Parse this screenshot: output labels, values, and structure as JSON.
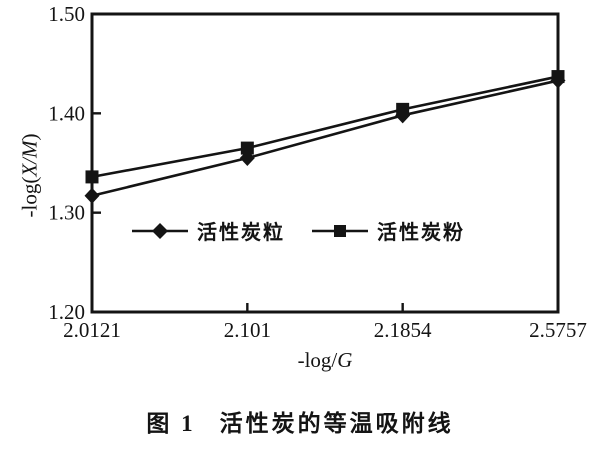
{
  "figure": {
    "caption_label": "图 1",
    "caption_text": "活性炭的等温吸附线"
  },
  "chart_data": {
    "type": "line",
    "title": "",
    "categories": [
      "2.0121",
      "2.101",
      "2.1854",
      "2.5757"
    ],
    "series": [
      {
        "name": "活性炭粒",
        "marker": "diamond",
        "values": [
          1.317,
          1.355,
          1.398,
          1.433
        ]
      },
      {
        "name": "活性炭粉",
        "marker": "square",
        "values": [
          1.336,
          1.365,
          1.404,
          1.437
        ]
      }
    ],
    "xlabel": {
      "pre": "-log/",
      "var": "G",
      "post": ""
    },
    "ylabel": {
      "pre": "-log(",
      "var": "X/M",
      "post": ")"
    },
    "ylim": [
      1.2,
      1.5
    ],
    "yticks": [
      1.2,
      1.3,
      1.4,
      1.5
    ],
    "ytick_labels": [
      "1.20",
      "1.30",
      "1.40",
      "1.50"
    ],
    "grid": false,
    "legend_position": "inside-bottom",
    "line_color": "#141414",
    "background": "#ffffff"
  }
}
